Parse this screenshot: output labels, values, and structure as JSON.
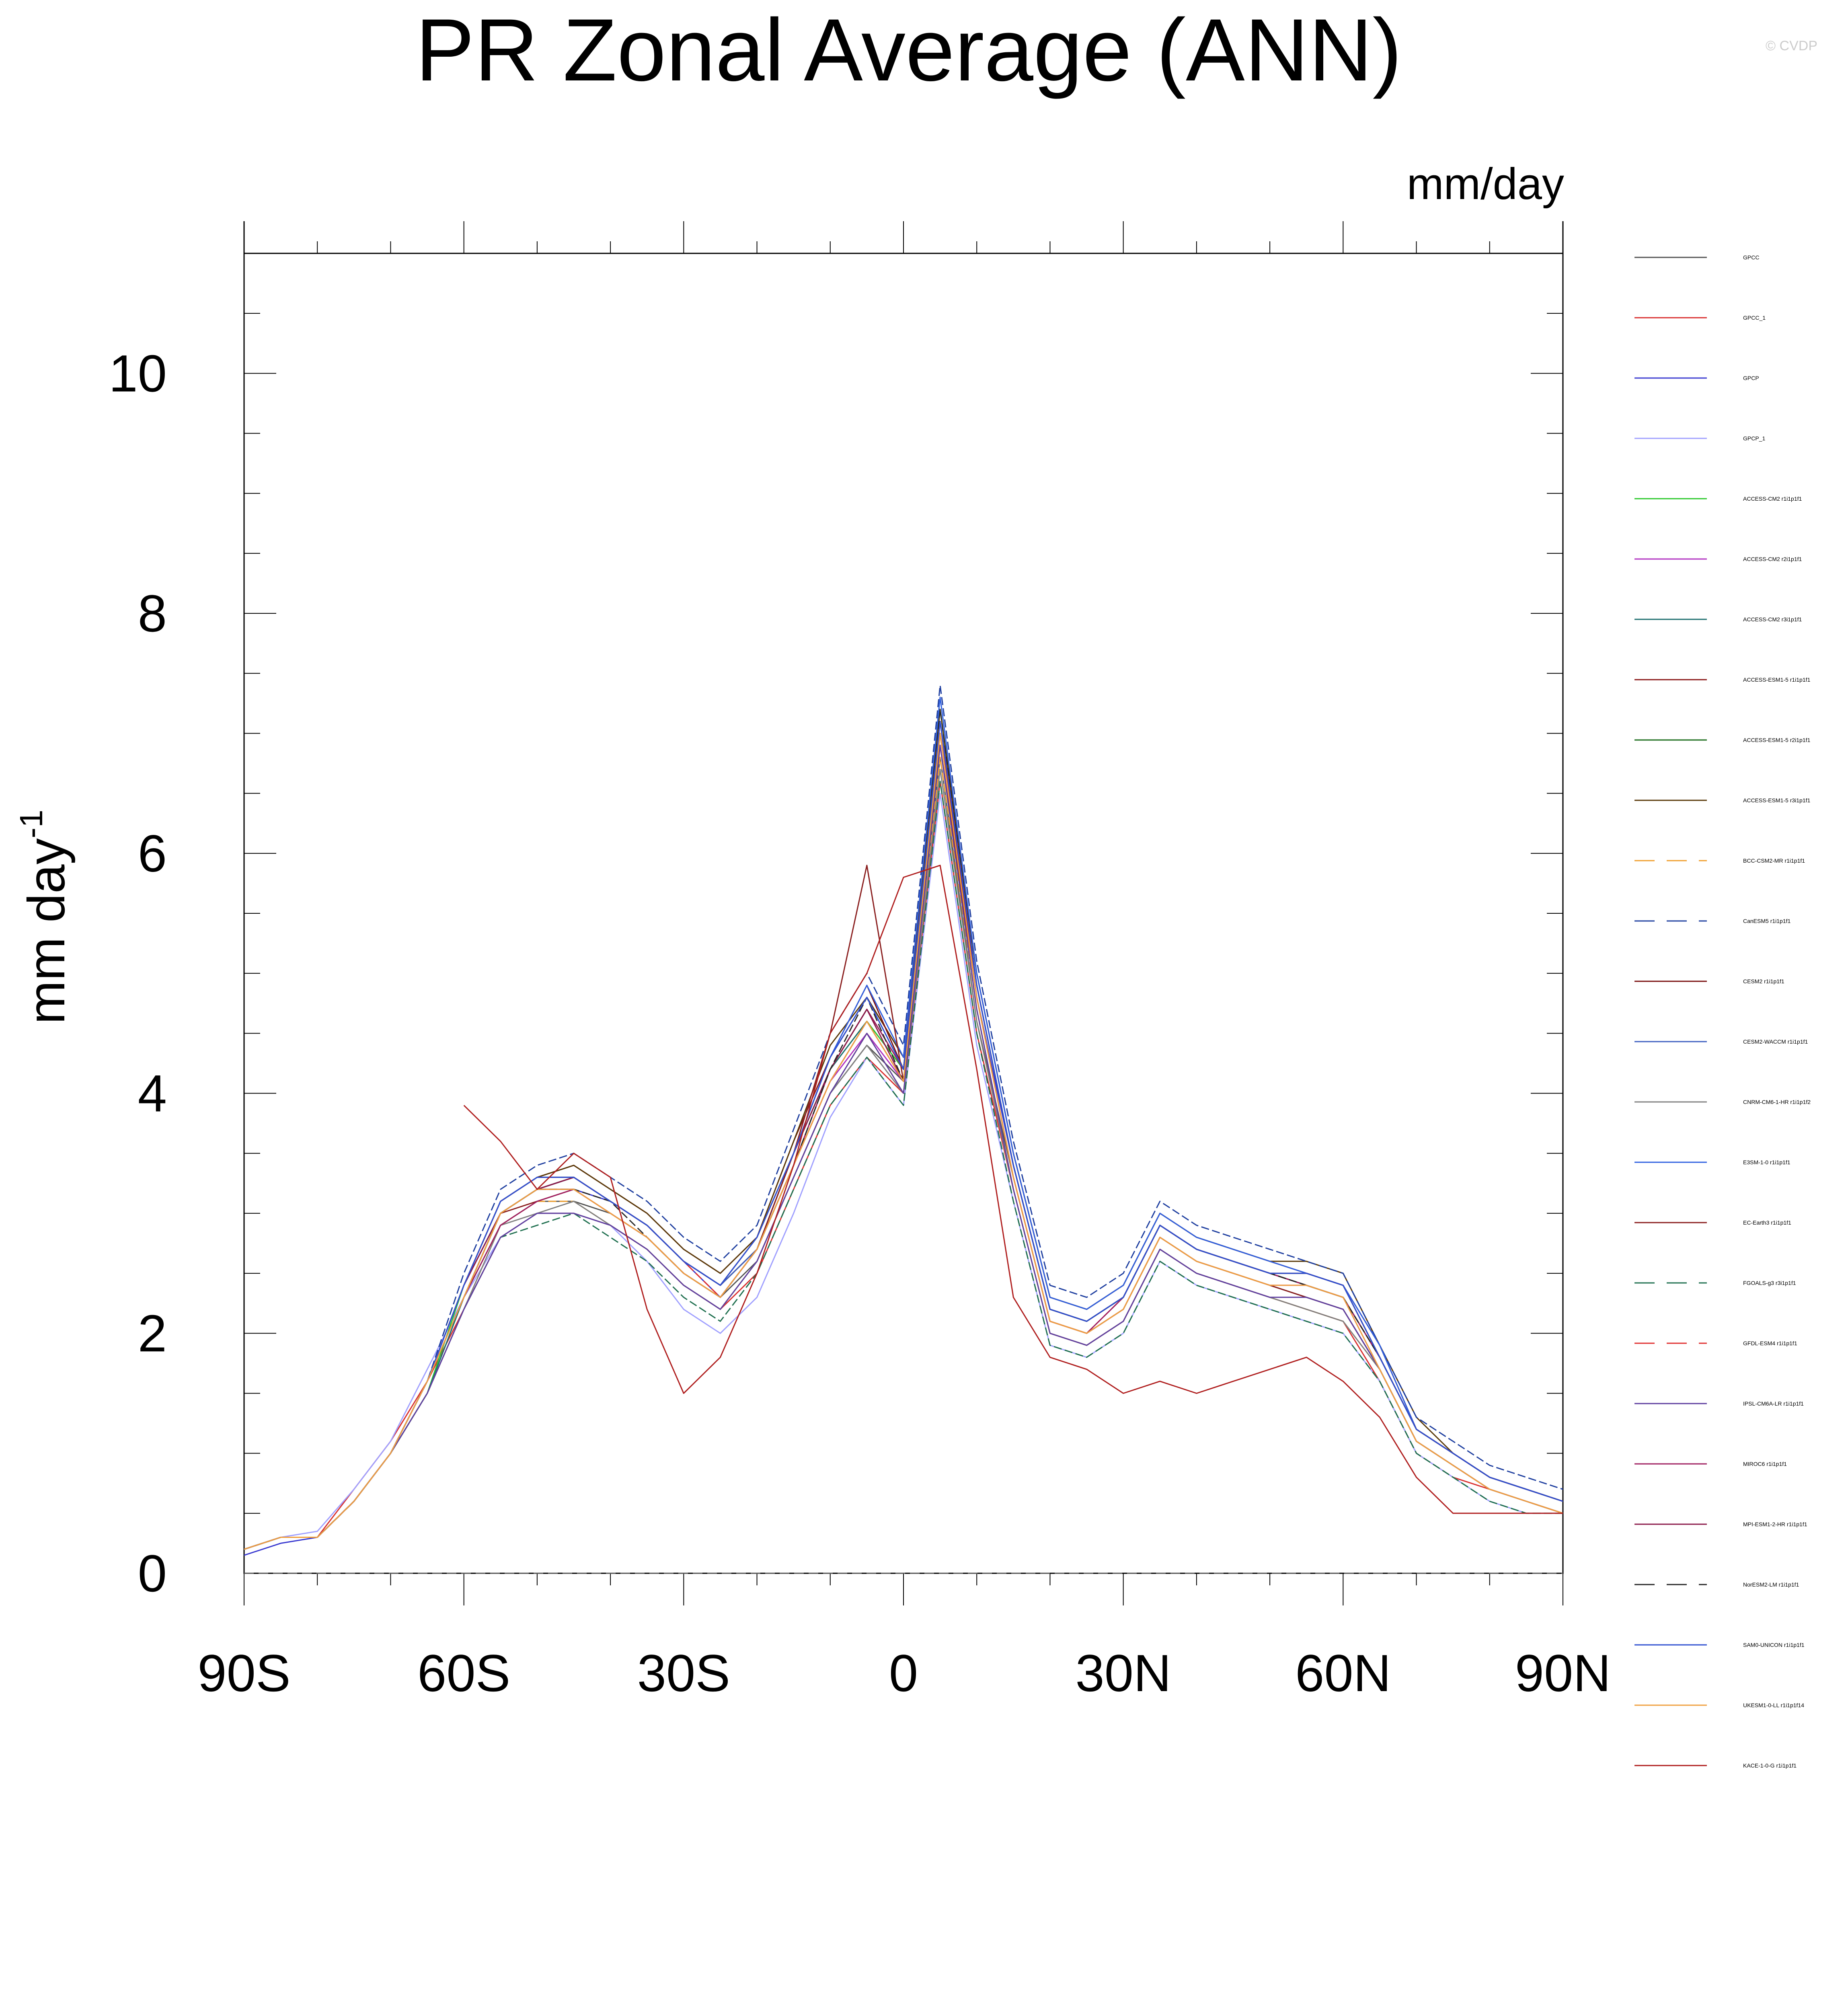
{
  "chart_data": {
    "type": "line",
    "title": "PR Zonal Average (ANN)",
    "units_label": "mm/day",
    "ylabel": "mm day",
    "ylabel_superscript": "-1",
    "watermark": "© CVDP",
    "xlim": [
      -90,
      90
    ],
    "ylim": [
      0,
      11
    ],
    "x_ticks": [
      -90,
      -60,
      -30,
      0,
      30,
      60,
      90
    ],
    "x_tick_labels": [
      "90S",
      "60S",
      "30S",
      "0",
      "30N",
      "60N",
      "90N"
    ],
    "y_ticks": [
      0,
      2,
      4,
      6,
      8,
      10
    ],
    "y_tick_labels": [
      "0",
      "2",
      "4",
      "6",
      "8",
      "10"
    ],
    "grid": false,
    "legend_position": "right",
    "x": [
      -90,
      -85,
      -80,
      -75,
      -70,
      -65,
      -60,
      -55,
      -50,
      -45,
      -40,
      -35,
      -30,
      -25,
      -20,
      -15,
      -10,
      -5,
      0,
      5,
      10,
      15,
      20,
      25,
      30,
      35,
      40,
      45,
      50,
      55,
      60,
      65,
      70,
      75,
      80,
      85,
      90
    ],
    "series": [
      {
        "name": "GPCC",
        "color": "#555555",
        "values": [
          0.2,
          0.3,
          0.3,
          0.6,
          1.0,
          1.5,
          2.3,
          2.9,
          3.1,
          3.1,
          3.0,
          2.8,
          2.5,
          2.3,
          2.6,
          3.3,
          4.0,
          4.4,
          4.1,
          6.8,
          4.6,
          3.3,
          2.1,
          2.0,
          2.2,
          2.8,
          2.6,
          2.5,
          2.4,
          2.3,
          2.2,
          1.7,
          1.1,
          0.9,
          0.7,
          0.6,
          0.5
        ]
      },
      {
        "name": "GPCC_1",
        "color": "#d93030",
        "values": [
          0.2,
          0.3,
          0.3,
          0.7,
          1.1,
          1.6,
          2.2,
          2.8,
          3.0,
          3.0,
          2.9,
          2.7,
          2.4,
          2.2,
          2.5,
          3.2,
          3.9,
          4.3,
          4.0,
          6.6,
          4.5,
          3.2,
          2.0,
          1.9,
          2.1,
          2.7,
          2.5,
          2.4,
          2.3,
          2.2,
          2.1,
          1.6,
          1.0,
          0.8,
          0.7,
          0.6,
          0.5
        ]
      },
      {
        "name": "GPCP",
        "color": "#3a3ad0",
        "values": [
          0.15,
          0.25,
          0.3,
          0.6,
          1.0,
          1.6,
          2.4,
          3.0,
          3.2,
          3.2,
          3.1,
          2.9,
          2.6,
          2.3,
          2.7,
          3.4,
          4.1,
          4.6,
          4.2,
          7.0,
          4.8,
          3.4,
          2.2,
          2.1,
          2.3,
          2.9,
          2.7,
          2.6,
          2.5,
          2.4,
          2.3,
          1.8,
          1.2,
          1.0,
          0.8,
          0.7,
          0.6
        ]
      },
      {
        "name": "GPCP_1",
        "color": "#a0a0ff",
        "values": [
          0.2,
          0.3,
          0.35,
          0.7,
          1.1,
          1.7,
          2.3,
          2.8,
          3.0,
          3.0,
          2.9,
          2.6,
          2.2,
          2.0,
          2.3,
          3.0,
          3.8,
          4.3,
          3.9,
          6.5,
          4.4,
          3.1,
          1.9,
          1.8,
          2.0,
          2.6,
          2.4,
          2.3,
          2.2,
          2.1,
          2.0,
          1.6,
          1.0,
          0.8,
          0.6,
          0.5,
          0.5
        ]
      },
      {
        "name": "ACCESS-CM2 r1i1p1f1",
        "color": "#2ec82e",
        "values": [
          0.2,
          0.3,
          0.3,
          0.6,
          1.0,
          1.5,
          2.4,
          3.1,
          3.3,
          3.3,
          3.1,
          2.9,
          2.6,
          2.4,
          2.8,
          3.5,
          4.2,
          4.6,
          4.2,
          7.2,
          4.9,
          3.4,
          2.2,
          2.1,
          2.3,
          2.9,
          2.7,
          2.6,
          2.5,
          2.5,
          2.4,
          1.8,
          1.2,
          1.0,
          0.8,
          0.7,
          0.6
        ]
      },
      {
        "name": "ACCESS-CM2 r2i1p1f1",
        "color": "#b030c0",
        "values": [
          0.2,
          0.3,
          0.3,
          0.6,
          1.0,
          1.6,
          2.3,
          3.0,
          3.2,
          3.2,
          3.0,
          2.8,
          2.5,
          2.3,
          2.7,
          3.4,
          4.1,
          4.5,
          4.1,
          7.0,
          4.8,
          3.3,
          2.1,
          2.0,
          2.2,
          2.8,
          2.6,
          2.5,
          2.4,
          2.4,
          2.3,
          1.7,
          1.1,
          0.9,
          0.7,
          0.6,
          0.5
        ]
      },
      {
        "name": "ACCESS-CM2 r3i1p1f1",
        "color": "#207070",
        "values": [
          0.2,
          0.3,
          0.3,
          0.6,
          1.0,
          1.5,
          2.3,
          3.0,
          3.2,
          3.3,
          3.1,
          2.9,
          2.6,
          2.4,
          2.7,
          3.4,
          4.2,
          4.6,
          4.1,
          7.1,
          4.9,
          3.4,
          2.2,
          2.1,
          2.3,
          2.9,
          2.7,
          2.6,
          2.5,
          2.4,
          2.3,
          1.8,
          1.2,
          1.0,
          0.8,
          0.7,
          0.6
        ]
      },
      {
        "name": "ACCESS-ESM1-5 r1i1p1f1",
        "color": "#8b1a1a",
        "values": [
          0.2,
          0.3,
          0.3,
          0.6,
          1.0,
          1.6,
          2.4,
          3.1,
          3.3,
          3.4,
          3.2,
          3.0,
          2.7,
          2.5,
          2.8,
          3.6,
          4.3,
          4.8,
          4.3,
          7.1,
          5.0,
          3.5,
          2.3,
          2.2,
          2.4,
          3.0,
          2.8,
          2.7,
          2.6,
          2.5,
          2.4,
          1.9,
          1.2,
          1.0,
          0.8,
          0.7,
          0.6
        ]
      },
      {
        "name": "ACCESS-ESM1-5 r2i1p1f1",
        "color": "#1a6b1a",
        "values": [
          0.2,
          0.3,
          0.3,
          0.6,
          1.0,
          1.6,
          2.3,
          3.0,
          3.2,
          3.3,
          3.1,
          2.9,
          2.6,
          2.4,
          2.7,
          3.5,
          4.2,
          4.7,
          4.2,
          7.0,
          4.9,
          3.4,
          2.2,
          2.1,
          2.3,
          2.9,
          2.7,
          2.6,
          2.5,
          2.4,
          2.3,
          1.8,
          1.2,
          1.0,
          0.8,
          0.7,
          0.6
        ]
      },
      {
        "name": "ACCESS-ESM1-5 r3i1p1f1",
        "color": "#5a3a0a",
        "values": [
          0.2,
          0.3,
          0.3,
          0.6,
          1.0,
          1.6,
          2.4,
          3.1,
          3.3,
          3.4,
          3.2,
          3.0,
          2.7,
          2.5,
          2.8,
          3.6,
          4.4,
          4.8,
          4.3,
          7.2,
          5.0,
          3.5,
          2.3,
          2.2,
          2.4,
          3.0,
          2.8,
          2.7,
          2.6,
          2.6,
          2.5,
          1.9,
          1.3,
          1.0,
          0.8,
          0.7,
          0.6
        ]
      },
      {
        "name": "BCC-CSM2-MR r1i1p1f1",
        "color": "#f0a030",
        "dash": "20,8",
        "values": [
          0.2,
          0.3,
          0.3,
          0.6,
          1.0,
          1.5,
          2.2,
          2.9,
          3.1,
          3.1,
          2.9,
          2.7,
          2.4,
          2.2,
          2.6,
          3.3,
          4.0,
          4.5,
          4.0,
          6.8,
          4.7,
          3.2,
          2.0,
          1.9,
          2.1,
          2.7,
          2.5,
          2.4,
          2.3,
          2.2,
          2.1,
          1.7,
          1.1,
          0.9,
          0.7,
          0.6,
          0.5
        ]
      },
      {
        "name": "CanESM5 r1i1p1f1",
        "color": "#2040a0",
        "dash": "20,8",
        "values": [
          0.2,
          0.3,
          0.3,
          0.6,
          1.0,
          1.6,
          2.5,
          3.2,
          3.4,
          3.5,
          3.3,
          3.1,
          2.8,
          2.6,
          2.9,
          3.7,
          4.5,
          5.0,
          4.4,
          7.4,
          5.1,
          3.6,
          2.4,
          2.3,
          2.5,
          3.1,
          2.9,
          2.8,
          2.7,
          2.6,
          2.5,
          1.9,
          1.3,
          1.1,
          0.9,
          0.8,
          0.7
        ]
      },
      {
        "name": "CESM2 r1i1p1f1",
        "color": "#7a1010",
        "values": [
          0.2,
          0.3,
          0.3,
          0.6,
          1.0,
          1.6,
          2.3,
          3.0,
          3.2,
          3.3,
          3.1,
          2.9,
          2.6,
          2.4,
          2.7,
          3.5,
          4.3,
          4.9,
          4.2,
          7.1,
          4.9,
          3.4,
          2.2,
          2.1,
          2.3,
          2.9,
          2.7,
          2.6,
          2.5,
          2.5,
          2.4,
          1.8,
          1.2,
          1.0,
          0.8,
          0.7,
          0.6
        ]
      },
      {
        "name": "CESM2-WACCM r1i1p1f1",
        "color": "#4060c0",
        "values": [
          0.2,
          0.3,
          0.3,
          0.6,
          1.0,
          1.6,
          2.4,
          3.0,
          3.2,
          3.3,
          3.1,
          2.9,
          2.6,
          2.4,
          2.7,
          3.5,
          4.3,
          4.8,
          4.2,
          7.0,
          4.9,
          3.4,
          2.2,
          2.1,
          2.3,
          2.9,
          2.7,
          2.6,
          2.5,
          2.4,
          2.3,
          1.8,
          1.2,
          1.0,
          0.8,
          0.7,
          0.6
        ]
      },
      {
        "name": "CNRM-CM6-1-HR r1i1p1f2",
        "color": "#808080",
        "values": [
          0.2,
          0.3,
          0.3,
          0.6,
          1.0,
          1.5,
          2.2,
          2.9,
          3.0,
          3.1,
          2.9,
          2.7,
          2.4,
          2.2,
          2.6,
          3.3,
          4.0,
          4.4,
          4.0,
          6.7,
          4.6,
          3.2,
          2.0,
          1.9,
          2.1,
          2.7,
          2.5,
          2.4,
          2.3,
          2.2,
          2.1,
          1.7,
          1.1,
          0.9,
          0.7,
          0.6,
          0.5
        ]
      },
      {
        "name": "E3SM-1-0 r1i1p1f1",
        "color": "#3060e0",
        "values": [
          0.2,
          0.3,
          0.3,
          0.6,
          1.0,
          1.6,
          2.4,
          3.1,
          3.3,
          3.3,
          3.1,
          2.9,
          2.6,
          2.4,
          2.8,
          3.5,
          4.3,
          4.9,
          4.3,
          7.3,
          5.0,
          3.5,
          2.3,
          2.2,
          2.4,
          3.0,
          2.8,
          2.7,
          2.6,
          2.5,
          2.4,
          1.9,
          1.2,
          1.0,
          0.8,
          0.7,
          0.6
        ]
      },
      {
        "name": "EC-Earth3 r1i1p1f1",
        "color": "#8b2020",
        "values": [
          0.2,
          0.3,
          0.3,
          0.6,
          1.0,
          1.6,
          2.3,
          3.0,
          3.1,
          3.2,
          3.0,
          2.8,
          2.5,
          2.3,
          2.7,
          3.5,
          4.5,
          5.9,
          4.1,
          6.9,
          4.8,
          3.3,
          2.1,
          2.0,
          2.2,
          2.8,
          2.6,
          2.5,
          2.4,
          2.3,
          2.2,
          1.7,
          1.1,
          0.9,
          0.7,
          0.6,
          0.5
        ]
      },
      {
        "name": "FGOALS-g3 r3i1p1f1",
        "color": "#207050",
        "dash": "20,8",
        "values": [
          0.2,
          0.3,
          0.3,
          0.6,
          1.0,
          1.5,
          2.2,
          2.8,
          2.9,
          3.0,
          2.8,
          2.6,
          2.3,
          2.1,
          2.5,
          3.2,
          3.9,
          4.3,
          3.9,
          6.6,
          4.5,
          3.1,
          1.9,
          1.8,
          2.0,
          2.6,
          2.4,
          2.3,
          2.2,
          2.1,
          2.0,
          1.6,
          1.0,
          0.8,
          0.6,
          0.5,
          0.5
        ]
      },
      {
        "name": "GFDL-ESM4 r1i1p1f1",
        "color": "#e03030",
        "dash": "20,8",
        "values": [
          0.2,
          0.3,
          0.3,
          0.6,
          1.0,
          1.6,
          2.4,
          3.1,
          3.3,
          3.3,
          3.1,
          2.9,
          2.6,
          2.3,
          2.7,
          3.4,
          4.1,
          4.6,
          4.1,
          7.0,
          4.8,
          3.3,
          2.1,
          2.0,
          2.3,
          2.9,
          2.7,
          2.6,
          2.5,
          2.4,
          2.3,
          1.8,
          1.2,
          1.0,
          0.8,
          0.7,
          0.6
        ]
      },
      {
        "name": "IPSL-CM6A-LR r1i1p1f1",
        "color": "#6040a0",
        "values": [
          0.2,
          0.3,
          0.3,
          0.6,
          1.0,
          1.5,
          2.2,
          2.8,
          3.0,
          3.0,
          2.9,
          2.7,
          2.4,
          2.2,
          2.6,
          3.3,
          4.0,
          4.5,
          4.0,
          6.9,
          4.7,
          3.2,
          2.0,
          1.9,
          2.1,
          2.7,
          2.5,
          2.4,
          2.3,
          2.3,
          2.2,
          1.7,
          1.1,
          0.9,
          0.7,
          0.6,
          0.5
        ]
      },
      {
        "name": "MIROC6 r1i1p1f1",
        "color": "#a02060",
        "values": [
          0.2,
          0.3,
          0.3,
          0.6,
          1.0,
          1.6,
          2.3,
          2.9,
          3.1,
          3.2,
          3.0,
          2.8,
          2.5,
          2.3,
          2.7,
          3.4,
          4.2,
          4.7,
          4.2,
          7.1,
          4.8,
          3.3,
          2.1,
          2.0,
          2.3,
          2.9,
          2.7,
          2.6,
          2.5,
          2.4,
          2.3,
          1.8,
          1.2,
          1.0,
          0.8,
          0.7,
          0.6
        ]
      },
      {
        "name": "MPI-ESM1-2-HR r1i1p1f1",
        "color": "#8b1a4a",
        "values": [
          0.2,
          0.3,
          0.3,
          0.6,
          1.0,
          1.6,
          2.4,
          3.0,
          3.2,
          3.3,
          3.1,
          2.9,
          2.6,
          2.4,
          2.8,
          3.5,
          4.2,
          4.7,
          4.1,
          7.0,
          4.9,
          3.4,
          2.2,
          2.1,
          2.3,
          2.9,
          2.7,
          2.6,
          2.5,
          2.5,
          2.4,
          1.8,
          1.2,
          1.0,
          0.8,
          0.7,
          0.6
        ]
      },
      {
        "name": "NorESM2-LM r1i1p1f1",
        "color": "#2a2a2a",
        "dash": "20,8",
        "values": [
          0.2,
          0.3,
          0.3,
          0.6,
          1.0,
          1.6,
          2.3,
          3.0,
          3.2,
          3.2,
          3.1,
          2.8,
          2.5,
          2.3,
          2.7,
          3.4,
          4.2,
          4.8,
          4.1,
          7.2,
          4.9,
          3.4,
          2.2,
          2.1,
          2.3,
          2.9,
          2.7,
          2.6,
          2.5,
          2.4,
          2.3,
          1.8,
          1.2,
          1.0,
          0.8,
          0.7,
          0.6
        ]
      },
      {
        "name": "SAM0-UNICON r1i1p1f1",
        "color": "#3050d0",
        "values": [
          0.2,
          0.3,
          0.3,
          0.6,
          1.0,
          1.6,
          2.4,
          3.1,
          3.3,
          3.3,
          3.1,
          2.9,
          2.6,
          2.4,
          2.8,
          3.5,
          4.3,
          4.8,
          4.2,
          7.1,
          4.9,
          3.4,
          2.2,
          2.1,
          2.3,
          2.9,
          2.7,
          2.6,
          2.5,
          2.5,
          2.4,
          1.8,
          1.2,
          1.0,
          0.8,
          0.7,
          0.6
        ]
      },
      {
        "name": "UKESM1-0-LL r1i1p1f14",
        "color": "#f0a040",
        "values": [
          0.2,
          0.3,
          0.3,
          0.6,
          1.0,
          1.6,
          2.3,
          3.0,
          3.2,
          3.2,
          3.0,
          2.8,
          2.5,
          2.3,
          2.7,
          3.4,
          4.1,
          4.6,
          4.1,
          7.0,
          4.8,
          3.3,
          2.1,
          2.0,
          2.2,
          2.8,
          2.6,
          2.5,
          2.4,
          2.4,
          2.3,
          1.7,
          1.1,
          0.9,
          0.7,
          0.6,
          0.5
        ]
      },
      {
        "name": "KACE-1-0-G r1i1p1f1",
        "color": "#b02020",
        "values": [
          null,
          null,
          null,
          null,
          null,
          null,
          3.9,
          3.6,
          3.2,
          3.5,
          3.3,
          2.2,
          1.5,
          1.8,
          2.5,
          3.4,
          4.5,
          5.0,
          5.8,
          5.9,
          4.2,
          2.3,
          1.8,
          1.7,
          1.5,
          1.6,
          1.5,
          1.6,
          1.7,
          1.8,
          1.6,
          1.3,
          0.8,
          0.5,
          0.5,
          0.5,
          0.5
        ]
      }
    ]
  }
}
